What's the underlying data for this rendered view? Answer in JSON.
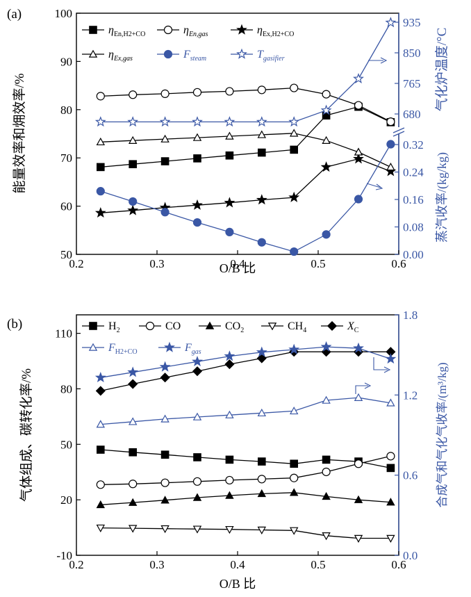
{
  "colors": {
    "black": "#000000",
    "blue": "#3a57a5"
  },
  "chart_data": [
    {
      "panel_label": "(a)",
      "type": "line",
      "x": [
        0.23,
        0.27,
        0.31,
        0.35,
        0.39,
        0.43,
        0.47,
        0.51,
        0.55,
        0.59
      ],
      "xlim": [
        0.2,
        0.6
      ],
      "xticks": [
        "0.2",
        "0.3",
        "0.4",
        "0.5",
        "0.6"
      ],
      "xlabel": "O/B 比",
      "ylabel": "能量效率和㶲效率/%",
      "ylim": [
        50,
        100
      ],
      "yticks": [
        "50",
        "60",
        "70",
        "80",
        "90",
        "100"
      ],
      "y2_label_top": "气化炉温度/°C",
      "y2_top_ticks": [
        "680",
        "765",
        "850",
        "935"
      ],
      "y2_label_bottom": "蒸汽收率/(kg/kg)",
      "y2_bottom_ticks": [
        "0.00",
        "0.08",
        "0.16",
        "0.24",
        "0.32"
      ],
      "legend": [
        {
          "symbol": "square-filled",
          "main": "η",
          "sub": "En,H2+CO",
          "color": "black"
        },
        {
          "symbol": "circle-open",
          "main": "η",
          "sub": "En,gas",
          "color": "black"
        },
        {
          "symbol": "star-filled",
          "main": "η",
          "sub": "Ex,H2+CO",
          "color": "black"
        },
        {
          "symbol": "triangle-open",
          "main": "η",
          "sub": "Ex,gas",
          "color": "black"
        },
        {
          "symbol": "circle-filled",
          "main": "F",
          "sub": "steam",
          "color": "blue"
        },
        {
          "symbol": "star-open",
          "main": "T",
          "sub": "gasifier",
          "color": "blue"
        }
      ],
      "series": [
        {
          "symbol": "square-filled",
          "color": "black",
          "axis": "left",
          "values": [
            68.1,
            68.7,
            69.3,
            69.9,
            70.5,
            71.1,
            71.7,
            78.8,
            80.6,
            77.4
          ]
        },
        {
          "symbol": "circle-open",
          "color": "black",
          "axis": "left",
          "values": [
            82.8,
            83.1,
            83.3,
            83.6,
            83.8,
            84.1,
            84.5,
            83.2,
            80.9,
            77.5
          ]
        },
        {
          "symbol": "star-filled",
          "color": "black",
          "axis": "left",
          "values": [
            58.6,
            59.1,
            59.7,
            60.2,
            60.7,
            61.3,
            61.8,
            68.1,
            69.8,
            67.2
          ]
        },
        {
          "symbol": "triangle-open",
          "color": "black",
          "axis": "left",
          "values": [
            73.3,
            73.6,
            73.9,
            74.2,
            74.5,
            74.8,
            75.1,
            73.6,
            71.2,
            68.1
          ]
        },
        {
          "symbol": "circle-filled",
          "color": "blue",
          "axis": "right-bottom",
          "values": [
            0.184,
            0.154,
            0.123,
            0.093,
            0.065,
            0.035,
            0.008,
            0.058,
            0.161,
            0.321
          ]
        },
        {
          "symbol": "star-open",
          "color": "blue",
          "axis": "right-top",
          "values": [
            658,
            658,
            658,
            658,
            658,
            658,
            658,
            690,
            778,
            934
          ]
        }
      ]
    },
    {
      "panel_label": "(b)",
      "type": "line",
      "x": [
        0.23,
        0.27,
        0.31,
        0.35,
        0.39,
        0.43,
        0.47,
        0.51,
        0.55,
        0.59
      ],
      "xlim": [
        0.2,
        0.6
      ],
      "xticks": [
        "0.2",
        "0.3",
        "0.4",
        "0.5",
        "0.6"
      ],
      "xlabel": "O/B 比",
      "ylabel": "气体组成、碳转化率/%",
      "ylim": [
        -10,
        120
      ],
      "yticks": [
        "-10",
        "20",
        "50",
        "80",
        "110"
      ],
      "y2_label": "合成气和气化气收率/(m³/kg)",
      "y2lim": [
        0,
        1.8
      ],
      "y2_ticks": [
        "0.0",
        "0.6",
        "1.2",
        "1.8"
      ],
      "legend": [
        {
          "symbol": "square-filled",
          "main": "H",
          "sub": "2",
          "color": "black"
        },
        {
          "symbol": "circle-open",
          "main": "CO",
          "sub": "",
          "color": "black"
        },
        {
          "symbol": "triangle-filled",
          "main": "CO",
          "sub": "2",
          "color": "black"
        },
        {
          "symbol": "triangle-down-open",
          "main": "CH",
          "sub": "4",
          "color": "black"
        },
        {
          "symbol": "diamond-filled",
          "main": "X",
          "sub": "C",
          "color": "black"
        },
        {
          "symbol": "triangle-open",
          "main": "F",
          "sub": "H2+CO",
          "color": "blue"
        },
        {
          "symbol": "star-filled",
          "main": "F",
          "sub": "gas",
          "color": "blue"
        }
      ],
      "series": [
        {
          "symbol": "square-filled",
          "color": "black",
          "axis": "left",
          "values": [
            47.1,
            45.7,
            44.4,
            43.0,
            41.7,
            40.7,
            39.5,
            41.7,
            40.7,
            37.2
          ]
        },
        {
          "symbol": "circle-open",
          "color": "black",
          "axis": "left",
          "values": [
            28.2,
            28.6,
            29.2,
            29.9,
            30.6,
            31.2,
            31.8,
            35.1,
            39.5,
            43.6
          ]
        },
        {
          "symbol": "triangle-filled",
          "color": "black",
          "axis": "left",
          "values": [
            17.3,
            18.5,
            19.8,
            21.2,
            22.3,
            23.3,
            23.9,
            21.8,
            20.0,
            18.7
          ]
        },
        {
          "symbol": "triangle-down-open",
          "color": "black",
          "axis": "left",
          "values": [
            4.8,
            4.6,
            4.4,
            4.2,
            4.0,
            3.7,
            3.4,
            0.6,
            -0.8,
            -0.8
          ]
        },
        {
          "symbol": "diamond-filled",
          "color": "black",
          "axis": "left",
          "values": [
            78.9,
            82.6,
            86.1,
            89.5,
            93.3,
            96.5,
            100.0,
            100.0,
            100.0,
            100.0
          ]
        },
        {
          "symbol": "triangle-open",
          "color": "blue",
          "axis": "right",
          "values": [
            0.98,
            1.0,
            1.02,
            1.035,
            1.05,
            1.065,
            1.08,
            1.16,
            1.18,
            1.14
          ]
        },
        {
          "symbol": "star-filled",
          "color": "blue",
          "axis": "right",
          "values": [
            1.33,
            1.37,
            1.41,
            1.45,
            1.49,
            1.52,
            1.54,
            1.56,
            1.55,
            1.47
          ]
        }
      ]
    }
  ]
}
